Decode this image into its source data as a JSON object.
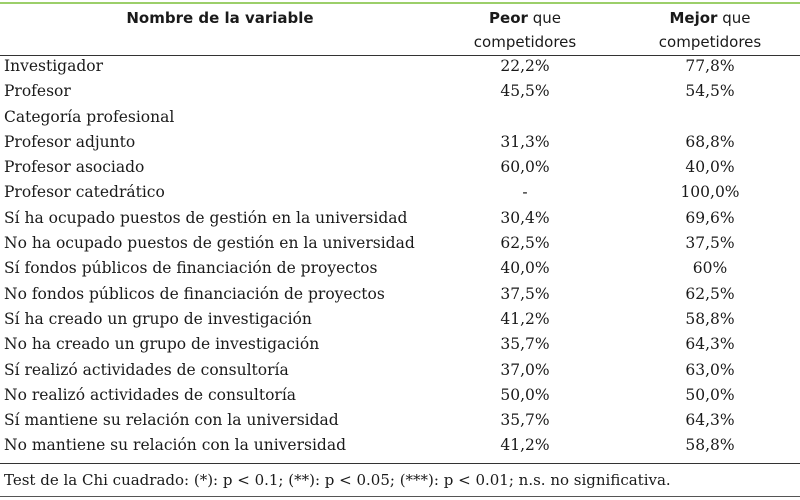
{
  "header": {
    "name": "Nombre de la variable",
    "peor_bold": "Peor",
    "peor_rest": " que",
    "peor_line2": "competidores",
    "mejor_bold": "Mejor",
    "mejor_rest": " que",
    "mejor_line2": "competidores"
  },
  "rows": [
    {
      "name": "Investigador",
      "peor": "22,2%",
      "mejor": "77,8%"
    },
    {
      "name": "Profesor",
      "peor": "45,5%",
      "mejor": "54,5%"
    },
    {
      "name": "Categoría profesional",
      "peor": "",
      "mejor": ""
    },
    {
      "name": "Profesor adjunto",
      "peor": "31,3%",
      "mejor": "68,8%"
    },
    {
      "name": "Profesor asociado",
      "peor": "60,0%",
      "mejor": "40,0%"
    },
    {
      "name": "Profesor catedrático",
      "peor": "-",
      "mejor": "100,0%"
    },
    {
      "name": "Sí ha ocupado puestos de gestión en la universidad",
      "peor": "30,4%",
      "mejor": "69,6%"
    },
    {
      "name": "No ha ocupado puestos de gestión en la universidad",
      "peor": "62,5%",
      "mejor": "37,5%"
    },
    {
      "name": "Sí fondos públicos de financiación de proyectos",
      "peor": "40,0%",
      "mejor": "60%"
    },
    {
      "name": "No fondos públicos de financiación de proyectos",
      "peor": "37,5%",
      "mejor": "62,5%"
    },
    {
      "name": "Sí ha creado un grupo de investigación",
      "peor": "41,2%",
      "mejor": "58,8%"
    },
    {
      "name": "No ha creado un grupo de investigación",
      "peor": "35,7%",
      "mejor": "64,3%"
    },
    {
      "name": "Sí realizó actividades de consultoría",
      "peor": "37,0%",
      "mejor": "63,0%"
    },
    {
      "name": "No realizó actividades de consultoría",
      "peor": "50,0%",
      "mejor": "50,0%"
    },
    {
      "name": "Sí mantiene su relación con la universidad",
      "peor": "35,7%",
      "mejor": "64,3%"
    },
    {
      "name": "No mantiene su relación con la universidad",
      "peor": "41,2%",
      "mejor": "58,8%"
    }
  ],
  "footnote": "Test de la Chi cuadrado: (*): p < 0.1; (**): p < 0.05; (***): p < 0.01; n.s. no significativa.",
  "colors": {
    "top_rule": "#9ccf6a",
    "text": "#1a1a1a"
  }
}
